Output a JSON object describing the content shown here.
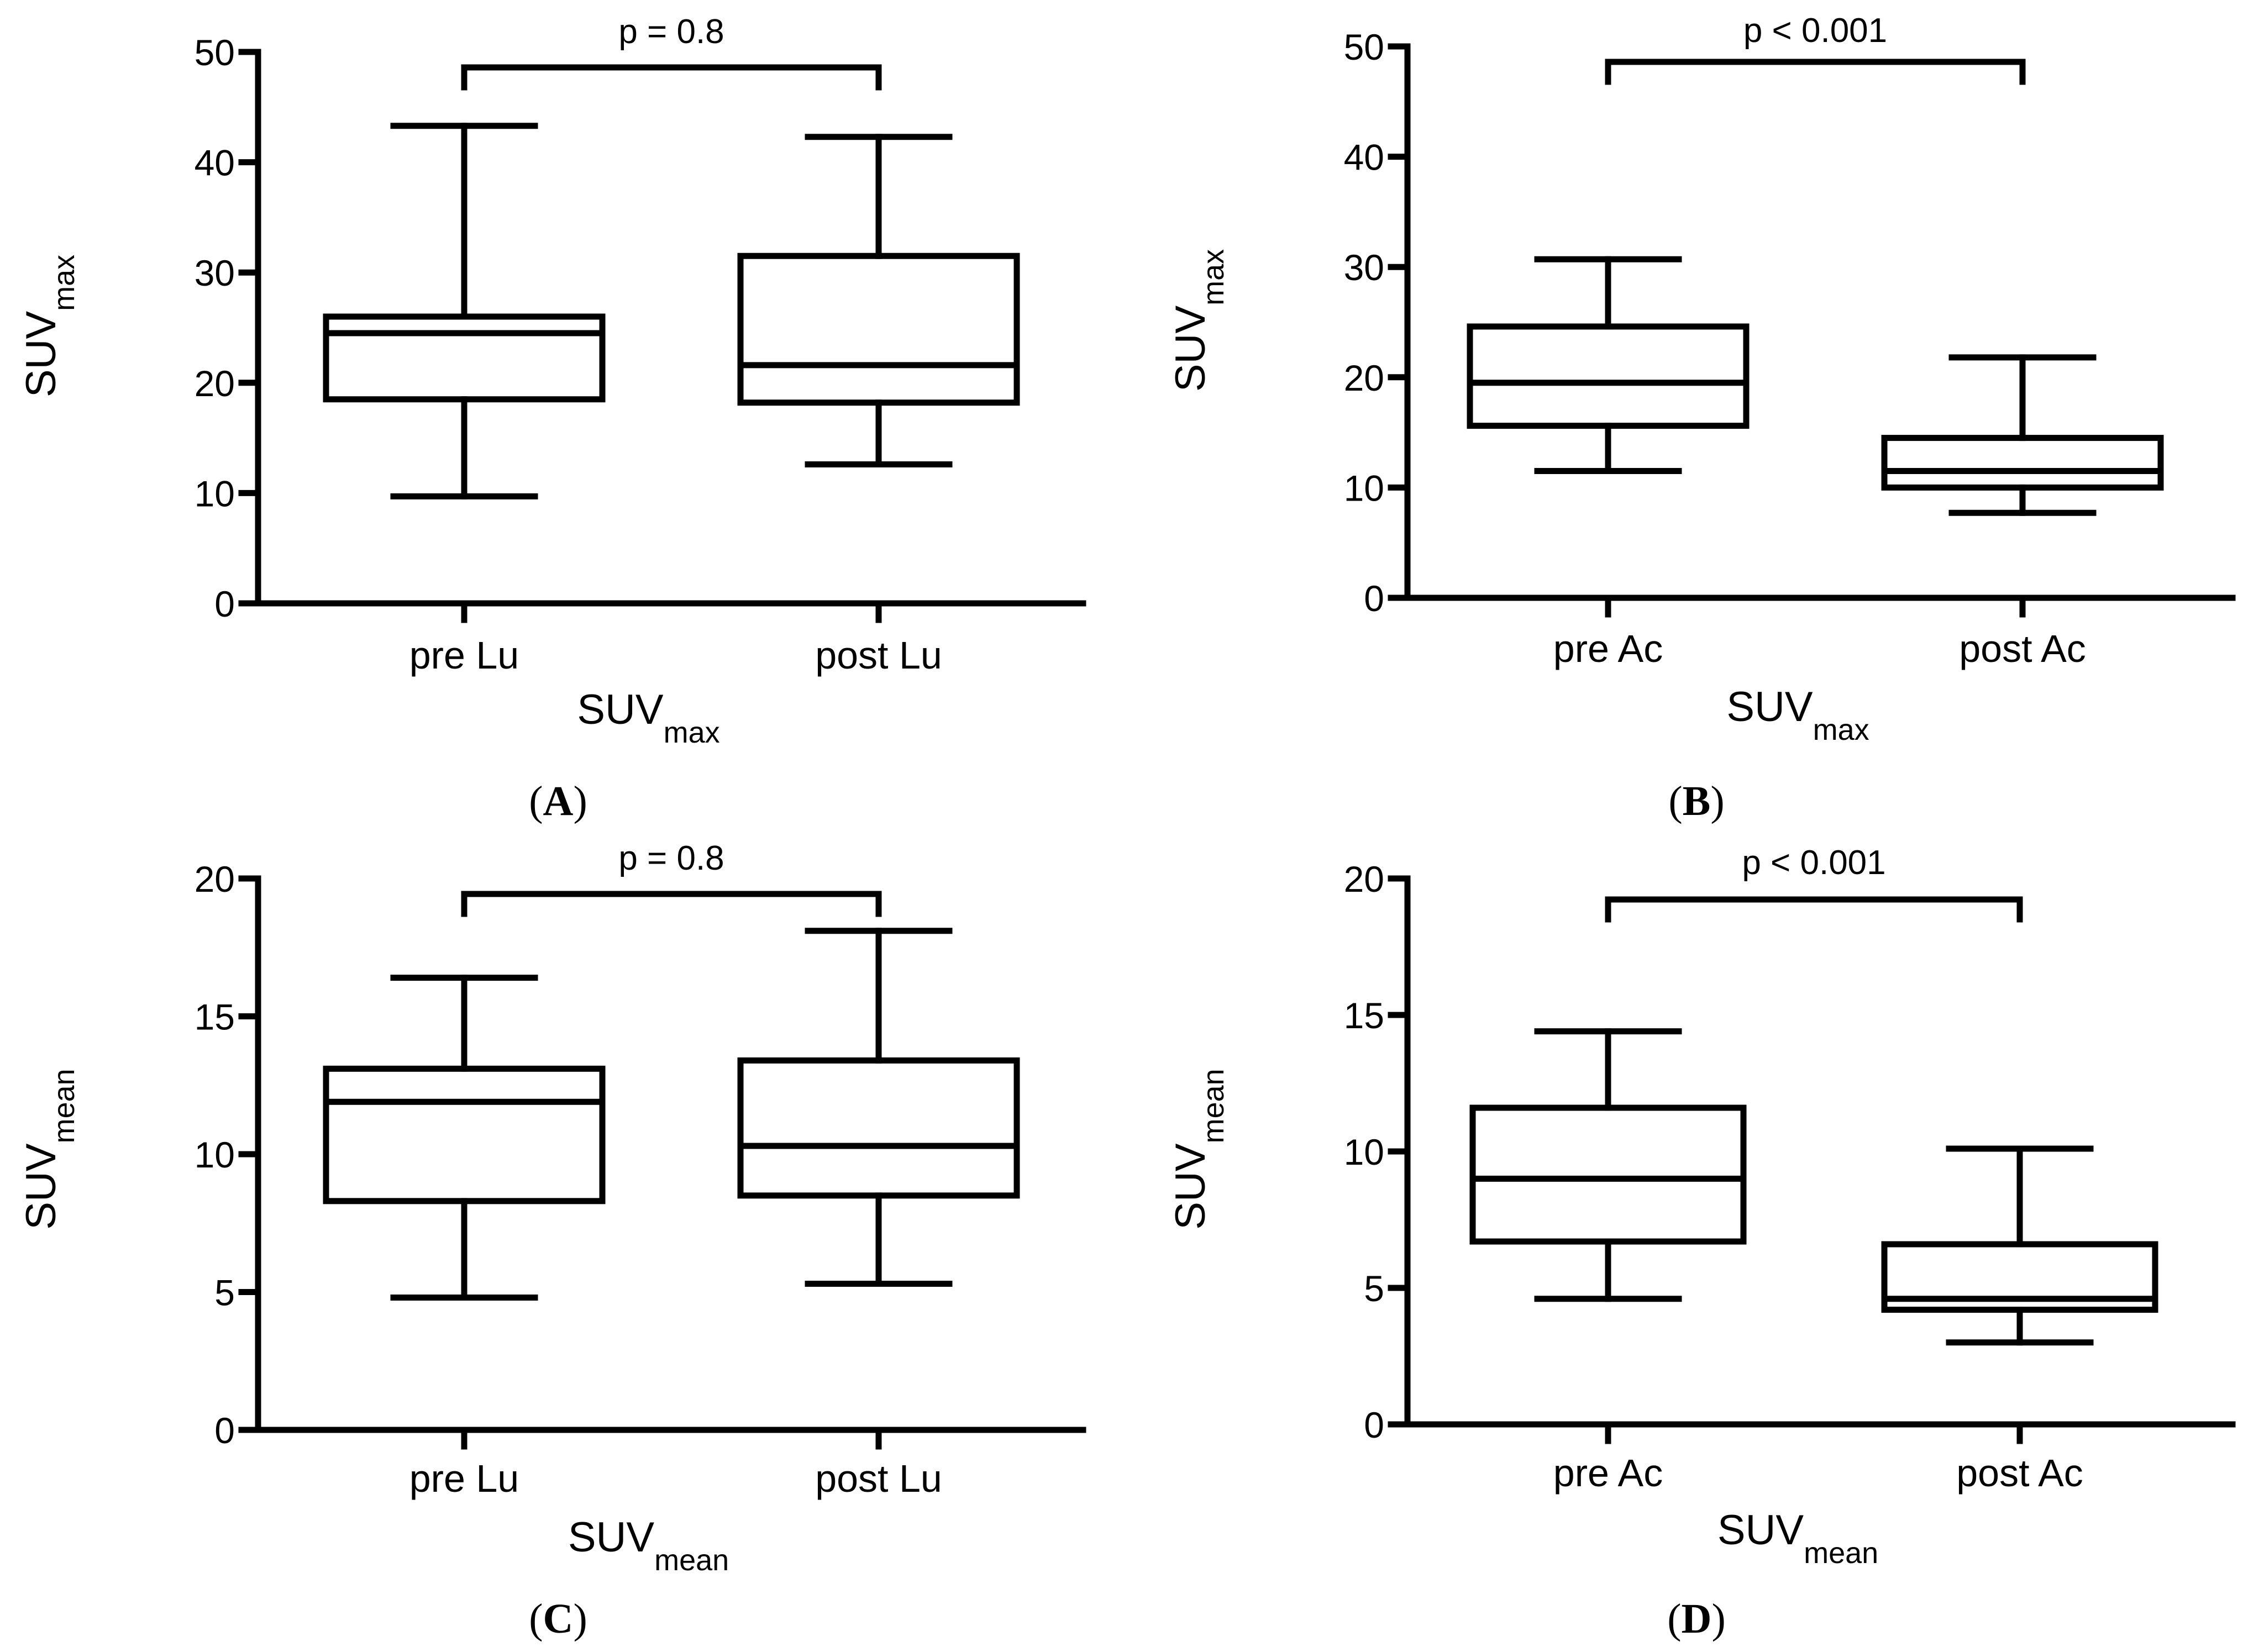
{
  "chart_data": [
    {
      "panel": "A",
      "type": "box",
      "title": "",
      "xlabel": {
        "main": "SUV",
        "sub": "max"
      },
      "ylabel": {
        "main": "SUV",
        "sub": "max"
      },
      "ylim": [
        0,
        50
      ],
      "yticks": [
        0,
        10,
        20,
        30,
        40,
        50
      ],
      "categories": [
        "pre Lu",
        "post Lu"
      ],
      "boxes": [
        {
          "min": 9.7,
          "q1": 18.5,
          "median": 24.5,
          "q3": 26.0,
          "max": 43.3
        },
        {
          "min": 12.6,
          "q1": 18.2,
          "median": 21.6,
          "q3": 31.5,
          "max": 42.3
        }
      ],
      "comparison": {
        "text": "p = 0.8",
        "y": 48.5
      }
    },
    {
      "panel": "B",
      "type": "box",
      "title": "",
      "xlabel": {
        "main": "SUV",
        "sub": "max"
      },
      "ylabel": {
        "main": "SUV",
        "sub": "max"
      },
      "ylim": [
        0,
        50
      ],
      "yticks": [
        0,
        10,
        20,
        30,
        40,
        50
      ],
      "categories": [
        "pre Ac",
        "post Ac"
      ],
      "boxes": [
        {
          "min": 11.5,
          "q1": 15.6,
          "median": 19.5,
          "q3": 24.6,
          "max": 30.7
        },
        {
          "min": 7.7,
          "q1": 10.0,
          "median": 11.5,
          "q3": 14.5,
          "max": 21.8
        }
      ],
      "comparison": {
        "text": "p < 0.001",
        "y": 48.2
      }
    },
    {
      "panel": "C",
      "type": "box",
      "title": "",
      "xlabel": {
        "main": "SUV",
        "sub": "mean"
      },
      "ylabel": {
        "main": "SUV",
        "sub": "mean"
      },
      "ylim": [
        0,
        20
      ],
      "yticks": [
        0,
        5,
        10,
        15,
        20
      ],
      "categories": [
        "pre Lu",
        "post Lu"
      ],
      "boxes": [
        {
          "min": 4.8,
          "q1": 8.3,
          "median": 11.9,
          "q3": 13.1,
          "max": 16.4
        },
        {
          "min": 5.3,
          "q1": 8.5,
          "median": 10.3,
          "q3": 13.4,
          "max": 18.1
        }
      ],
      "comparison": {
        "text": "p = 0.8",
        "y": 19.3
      }
    },
    {
      "panel": "D",
      "type": "box",
      "title": "",
      "xlabel": {
        "main": "SUV",
        "sub": "mean"
      },
      "ylabel": {
        "main": "SUV",
        "sub": "mean"
      },
      "ylim": [
        0,
        20
      ],
      "yticks": [
        0,
        5,
        10,
        15,
        20
      ],
      "categories": [
        "pre Ac",
        "post Ac"
      ],
      "boxes": [
        {
          "min": 4.6,
          "q1": 6.7,
          "median": 9.0,
          "q3": 11.6,
          "max": 14.4
        },
        {
          "min": 3.0,
          "q1": 4.2,
          "median": 4.6,
          "q3": 6.6,
          "max": 10.1
        }
      ],
      "comparison": {
        "text": "p < 0.001",
        "y": 19.3
      }
    }
  ],
  "panel_labels": [
    "(A)",
    "(B)",
    "(C)",
    "(D)"
  ],
  "colors": {
    "stroke": "#000000",
    "background": "#ffffff"
  }
}
